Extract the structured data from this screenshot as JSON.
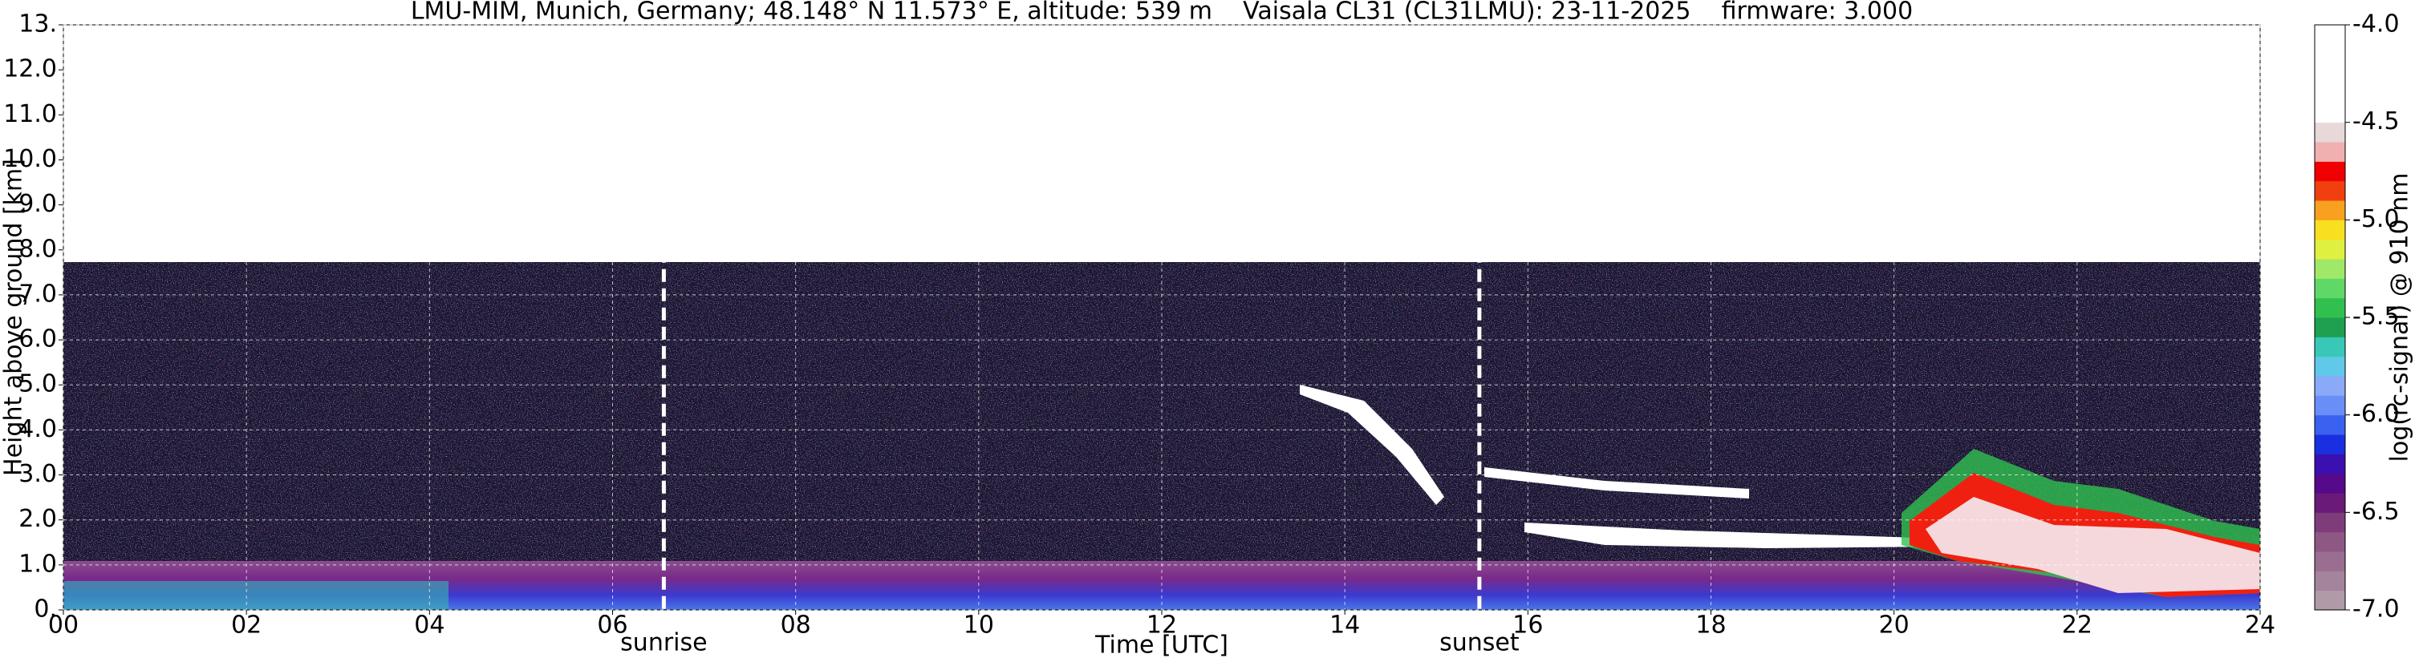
{
  "chart_data": {
    "type": "heatmap",
    "title": "LMU-MIM, Munich, Germany; 48.148° N 11.573° E, altitude: 539 m    Vaisala CL31 (CL31LMU): 23-11-2025    firmware: 3.000",
    "x_label": "Time [UTC]",
    "y_label": "Height above ground [km]",
    "xlim": [
      0,
      24
    ],
    "xticks": [
      {
        "value": 0,
        "label": "00"
      },
      {
        "value": 2,
        "label": "02"
      },
      {
        "value": 4,
        "label": "04"
      },
      {
        "value": 6,
        "label": "06"
      },
      {
        "value": 8,
        "label": "08"
      },
      {
        "value": 10,
        "label": "10"
      },
      {
        "value": 12,
        "label": "12"
      },
      {
        "value": 14,
        "label": "14"
      },
      {
        "value": 16,
        "label": "16"
      },
      {
        "value": 18,
        "label": "18"
      },
      {
        "value": 20,
        "label": "20"
      },
      {
        "value": 22,
        "label": "22"
      },
      {
        "value": 24,
        "label": "24"
      }
    ],
    "ylim": [
      0,
      13
    ],
    "yticks": [
      {
        "value": 0,
        "label": "0."
      },
      {
        "value": 1,
        "label": "1.0"
      },
      {
        "value": 2,
        "label": "2.0"
      },
      {
        "value": 3,
        "label": "3.0"
      },
      {
        "value": 4,
        "label": "4.0"
      },
      {
        "value": 5,
        "label": "5.0"
      },
      {
        "value": 6,
        "label": "6.0"
      },
      {
        "value": 7,
        "label": "7.0"
      },
      {
        "value": 8,
        "label": "8.0"
      },
      {
        "value": 9,
        "label": "9.0"
      },
      {
        "value": 10,
        "label": "10.0"
      },
      {
        "value": 11,
        "label": "11.0"
      },
      {
        "value": 12,
        "label": "12.0"
      },
      {
        "value": 13,
        "label": "13."
      }
    ],
    "grid": true,
    "annotations": [
      {
        "label": "sunrise",
        "x": 6.56
      },
      {
        "label": "sunset",
        "x": 15.47
      }
    ],
    "colorbar": {
      "label": "log(rc-signal) @ 910 nm",
      "clim": [
        -7,
        -4
      ],
      "ticks": [
        {
          "value": -4,
          "label": "-4.0"
        },
        {
          "value": -4.5,
          "label": "-4.5"
        },
        {
          "value": -5,
          "label": "-5.0"
        },
        {
          "value": -5.5,
          "label": "-5.5"
        },
        {
          "value": -6,
          "label": "-6.0"
        },
        {
          "value": -6.5,
          "label": "-6.5"
        },
        {
          "value": -7,
          "label": "-7.0"
        }
      ],
      "colors": [
        "#b09aa8",
        "#a4849c",
        "#9a6e90",
        "#8e5885",
        "#7e3d7a",
        "#6a1a78",
        "#540a8a",
        "#3a10b0",
        "#1a30e0",
        "#3a62f0",
        "#6a8ef8",
        "#8aaaf8",
        "#60c8e8",
        "#38c8b8",
        "#1ea050",
        "#30c050",
        "#60d868",
        "#a0e868",
        "#e0f040",
        "#f8e020",
        "#f8a020",
        "#f04010",
        "#f00000",
        "#f0b0b0",
        "#e8d8d8",
        "#ffffff",
        "#ffffff",
        "#ffffff",
        "#ffffff",
        "#ffffff"
      ]
    }
  }
}
